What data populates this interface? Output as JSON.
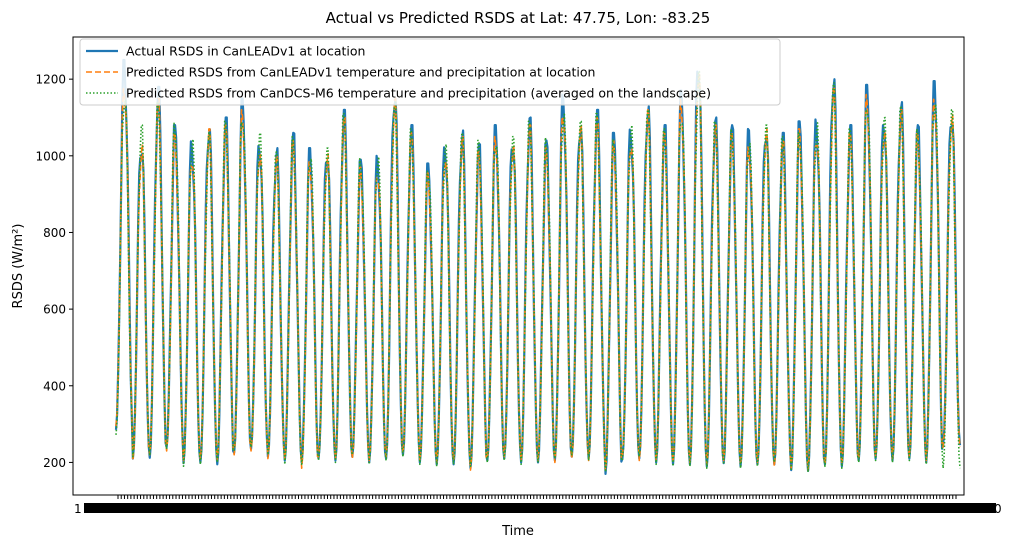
{
  "chart_data": {
    "type": "line",
    "title": "Actual vs Predicted RSDS at Lat: 47.75, Lon: -83.25",
    "xlabel": "Time",
    "ylabel": "RSDS (W/m²)",
    "ylim": [
      115,
      1310
    ],
    "yticks": [
      200,
      400,
      600,
      800,
      1000,
      1200
    ],
    "grid": false,
    "legend_position": "top-left",
    "x_tick_labels_overlapping": true,
    "x_tick_label_edge_start": "1",
    "x_tick_label_edge_end": "0",
    "cycles": 50,
    "series": [
      {
        "name": "Actual RSDS in CanLEADv1 at location",
        "color": "#1f77b4",
        "style": "solid",
        "peaks": [
          1250,
          1050,
          1180,
          1080,
          1040,
          1090,
          1100,
          1150,
          1050,
          1020,
          1060,
          1020,
          1030,
          1120,
          990,
          1000,
          1180,
          1080,
          980,
          1040,
          1070,
          1030,
          1080,
          1060,
          1100,
          1040,
          1160,
          1100,
          1120,
          1060,
          1080,
          1140,
          1080,
          1170,
          1265,
          1100,
          1080,
          1070,
          1090,
          1060,
          1090,
          1100,
          1220,
          1080,
          1185,
          1110,
          1140,
          1080,
          1195,
          1130
        ],
        "troughs": [
          285,
          210,
          212,
          240,
          198,
          200,
          195,
          225,
          235,
          215,
          205,
          200,
          210,
          205,
          215,
          200,
          210,
          220,
          200,
          195,
          195,
          185,
          205,
          210,
          200,
          200,
          205,
          215,
          210,
          170,
          210,
          210,
          200,
          195,
          195,
          190,
          198,
          190,
          195,
          195,
          180,
          178,
          195,
          190,
          205,
          210,
          205,
          210,
          200,
          245
        ]
      },
      {
        "name": "Predicted RSDS from CanLEADv1 temperature and precipitation at location",
        "color": "#ff7f0e",
        "style": "dashed",
        "peaks": [
          1200,
          1030,
          1150,
          1060,
          1020,
          1070,
          1080,
          1120,
          1030,
          1000,
          1040,
          1000,
          1010,
          1100,
          970,
          980,
          1150,
          1060,
          960,
          1020,
          1050,
          1010,
          1060,
          1040,
          1080,
          1020,
          1140,
          1080,
          1100,
          1040,
          1060,
          1120,
          1060,
          1150,
          1240,
          1080,
          1060,
          1050,
          1070,
          1040,
          1070,
          1080,
          1180,
          1060,
          1160,
          1090,
          1120,
          1060,
          1170,
          1110
        ],
        "troughs": [
          295,
          205,
          220,
          230,
          205,
          210,
          205,
          220,
          230,
          210,
          210,
          185,
          215,
          210,
          210,
          205,
          215,
          225,
          205,
          200,
          205,
          180,
          210,
          215,
          205,
          205,
          200,
          210,
          205,
          180,
          215,
          205,
          205,
          200,
          200,
          195,
          205,
          195,
          200,
          190,
          185,
          180,
          195,
          195,
          210,
          215,
          210,
          215,
          205,
          240
        ]
      },
      {
        "name": "Predicted RSDS from CanDCS-M6 temperature and precipitation (averaged on the landscape)",
        "color": "#2ca02c",
        "style": "dotted",
        "peaks": [
          1180,
          1080,
          1140,
          1100,
          1050,
          1060,
          1090,
          1130,
          1060,
          1010,
          1050,
          1030,
          1020,
          1110,
          1000,
          1010,
          1140,
          1070,
          990,
          1030,
          1060,
          1040,
          1070,
          1050,
          1090,
          1050,
          1130,
          1090,
          1110,
          1070,
          1080,
          1120,
          1070,
          1140,
          1220,
          1090,
          1070,
          1060,
          1080,
          1050,
          1080,
          1090,
          1190,
          1070,
          1170,
          1100,
          1130,
          1070,
          1175,
          1120
        ],
        "troughs": [
          272,
          215,
          218,
          235,
          190,
          195,
          200,
          230,
          240,
          220,
          195,
          195,
          205,
          200,
          220,
          195,
          205,
          215,
          195,
          190,
          195,
          190,
          200,
          205,
          195,
          200,
          210,
          220,
          205,
          175,
          205,
          215,
          195,
          190,
          190,
          185,
          195,
          185,
          190,
          200,
          178,
          175,
          190,
          185,
          200,
          205,
          200,
          205,
          195,
          185
        ]
      }
    ]
  }
}
